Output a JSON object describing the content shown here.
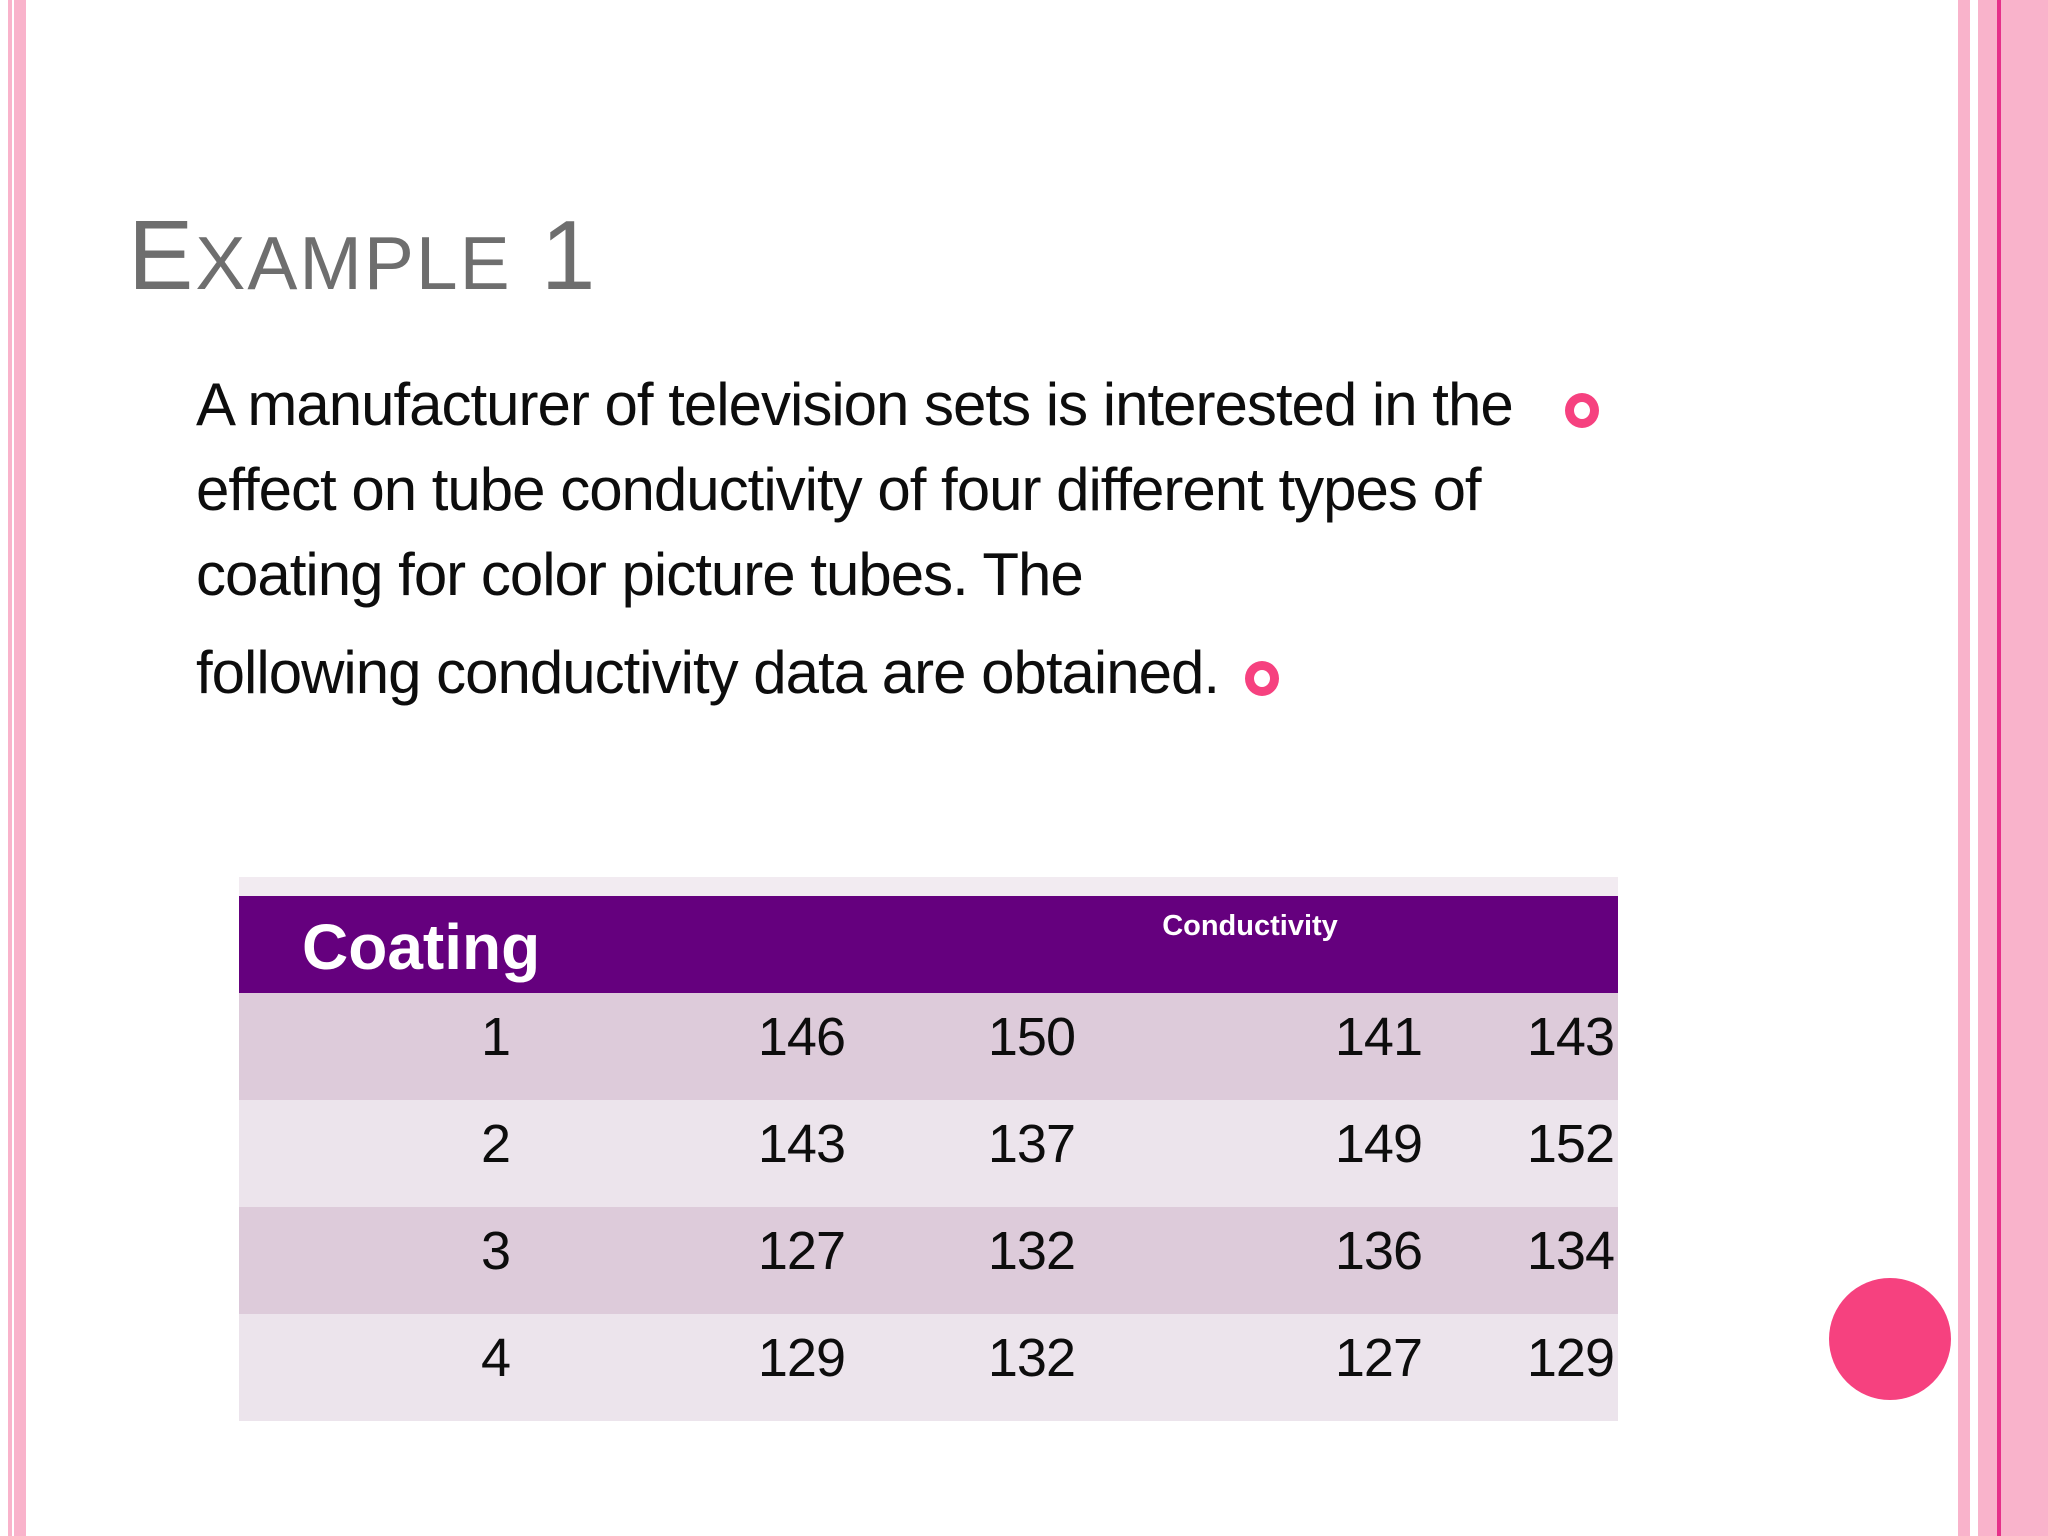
{
  "title": {
    "lead": "E",
    "rest": "XAMPLE",
    "tail": " 1",
    "full_text": "Example 1"
  },
  "body": {
    "paragraph1_lines": [
      "A manufacturer of television sets is interested in the",
      "effect on tube conductivity of four different types of",
      "coating for color picture tubes. The"
    ],
    "paragraph2": "following conductivity data are obtained."
  },
  "table": {
    "header": {
      "coating": "Coating",
      "conductivity": "Conductivity"
    },
    "rows": [
      {
        "coating": "1",
        "values": [
          "146",
          "150",
          "141",
          "143"
        ]
      },
      {
        "coating": "2",
        "values": [
          "143",
          "137",
          "149",
          "152"
        ]
      },
      {
        "coating": "3",
        "values": [
          "127",
          "132",
          "136",
          "134"
        ]
      },
      {
        "coating": "4",
        "values": [
          "129",
          "132",
          "127",
          "129"
        ]
      }
    ]
  },
  "icons": {
    "bullet1": "hollow-circle-bullet",
    "bullet2": "hollow-circle-bullet",
    "corner_decoration": "solid-circle"
  },
  "colors": {
    "purple": "#65007e",
    "row-odd": "#ddcbda",
    "row-even": "#ece4ec",
    "row-strip": "#f2ebf1",
    "pink": "#f6417f",
    "stripe-pink": "#f9b3cb",
    "magenta": "#e6308a",
    "title-gray": "#6e6e6e",
    "text-black": "#0d0d0d",
    "header-text": "#ffffff"
  }
}
